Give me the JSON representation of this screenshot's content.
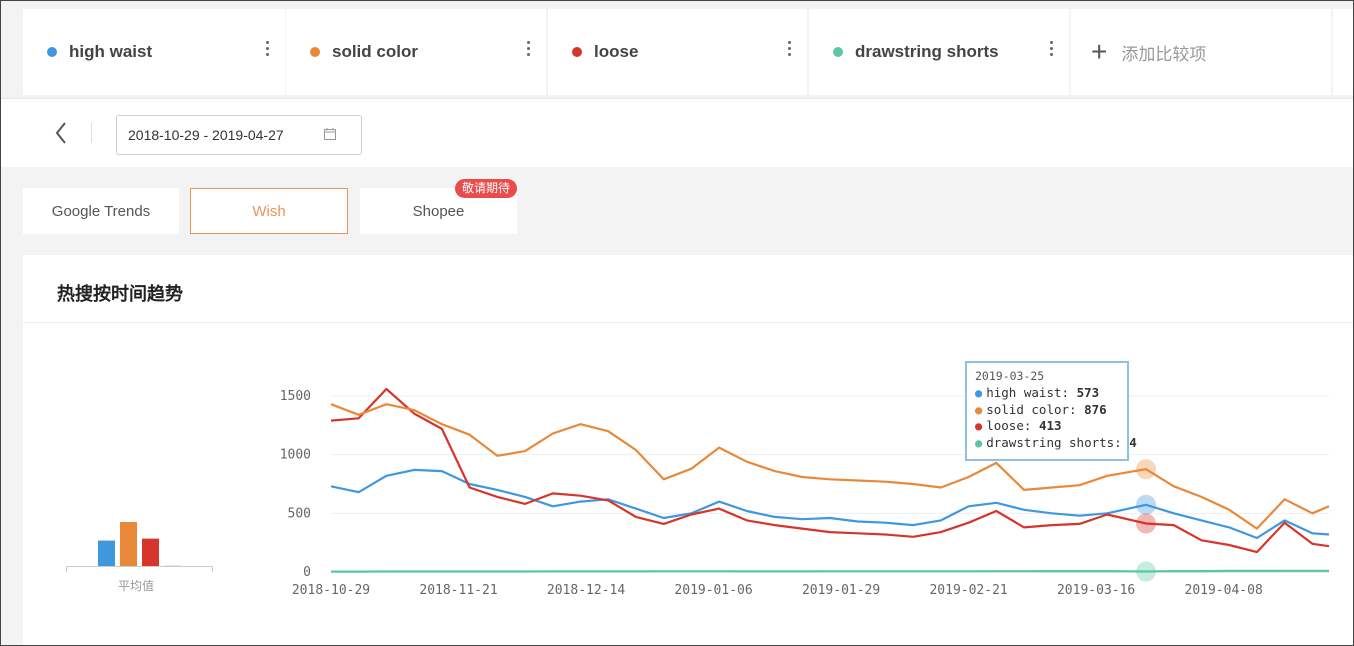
{
  "keywords": [
    {
      "label": "high waist",
      "color": "#3f97dd"
    },
    {
      "label": "solid color",
      "color": "#e8893a"
    },
    {
      "label": "loose",
      "color": "#d6352c"
    },
    {
      "label": "drawstring shorts",
      "color": "#5bc6a3"
    }
  ],
  "add_compare": {
    "plus_icon": "plus-icon",
    "label": "添加比较项"
  },
  "date_range": {
    "value": "2018-10-29 - 2019-04-27",
    "back_icon": "chevron-left-icon",
    "calendar_icon": "calendar-icon"
  },
  "tabs": [
    {
      "label": "Google Trends"
    },
    {
      "label": "Wish",
      "active": true
    },
    {
      "label": "Shopee",
      "badge": "敬请期待"
    }
  ],
  "card": {
    "title": "热搜按时间趋势",
    "avg_label": "平均值"
  },
  "average_bars": [
    {
      "keyword": "high waist",
      "color": "#3f97dd",
      "value": 520
    },
    {
      "keyword": "solid color",
      "color": "#e8893a",
      "value": 900
    },
    {
      "keyword": "loose",
      "color": "#d6352c",
      "value": 560
    },
    {
      "keyword": "drawstring shorts",
      "color": "#5bc6a3",
      "value": 5
    }
  ],
  "tooltip": {
    "date": "2019-03-25",
    "rows": [
      {
        "name": "high waist",
        "value": "573",
        "color": "#3f97dd"
      },
      {
        "name": "solid color",
        "value": "876",
        "color": "#e8893a"
      },
      {
        "name": "loose",
        "value": "413",
        "color": "#d6352c"
      },
      {
        "name": "drawstring shorts",
        "value": "4",
        "color": "#5bc6a3"
      }
    ]
  },
  "chart_data": {
    "type": "line",
    "xlabel": "",
    "ylabel": "",
    "ylim": [
      0,
      1500
    ],
    "yticks": [
      0,
      500,
      1000,
      1500
    ],
    "grid": true,
    "x_tick_labels": [
      "2018-10-29",
      "2018-11-21",
      "2018-12-14",
      "2019-01-06",
      "2019-01-29",
      "2019-02-21",
      "2019-03-16",
      "2019-04-08"
    ],
    "x": [
      "2018-10-29",
      "2018-11-03",
      "2018-11-08",
      "2018-11-13",
      "2018-11-18",
      "2018-11-23",
      "2018-11-28",
      "2018-12-03",
      "2018-12-08",
      "2018-12-13",
      "2018-12-18",
      "2018-12-23",
      "2018-12-28",
      "2019-01-02",
      "2019-01-07",
      "2019-01-12",
      "2019-01-17",
      "2019-01-22",
      "2019-01-27",
      "2019-02-01",
      "2019-02-06",
      "2019-02-11",
      "2019-02-16",
      "2019-02-21",
      "2019-02-26",
      "2019-03-03",
      "2019-03-08",
      "2019-03-13",
      "2019-03-18",
      "2019-03-25",
      "2019-03-30",
      "2019-04-04",
      "2019-04-09",
      "2019-04-14",
      "2019-04-19",
      "2019-04-24",
      "2019-04-27"
    ],
    "series": [
      {
        "name": "high waist",
        "color": "#3f97dd",
        "values": [
          730,
          680,
          820,
          870,
          860,
          750,
          700,
          640,
          560,
          600,
          620,
          540,
          460,
          500,
          600,
          520,
          470,
          450,
          460,
          430,
          420,
          400,
          440,
          560,
          590,
          530,
          500,
          480,
          500,
          573,
          500,
          440,
          380,
          290,
          440,
          330,
          320
        ]
      },
      {
        "name": "solid color",
        "color": "#e8893a",
        "values": [
          1430,
          1340,
          1430,
          1380,
          1260,
          1170,
          990,
          1030,
          1180,
          1260,
          1200,
          1040,
          790,
          880,
          1060,
          940,
          860,
          810,
          790,
          780,
          770,
          750,
          720,
          810,
          930,
          700,
          720,
          740,
          820,
          876,
          730,
          640,
          530,
          370,
          620,
          500,
          560
        ]
      },
      {
        "name": "loose",
        "color": "#d6352c",
        "values": [
          1290,
          1310,
          1560,
          1350,
          1220,
          720,
          640,
          580,
          670,
          650,
          610,
          470,
          410,
          490,
          540,
          440,
          400,
          370,
          340,
          330,
          320,
          300,
          340,
          420,
          520,
          380,
          400,
          410,
          490,
          413,
          400,
          270,
          230,
          170,
          420,
          240,
          220
        ]
      },
      {
        "name": "drawstring shorts",
        "color": "#5bc6a3",
        "values": [
          3,
          3,
          4,
          4,
          4,
          4,
          4,
          4,
          5,
          5,
          5,
          5,
          6,
          6,
          6,
          5,
          5,
          5,
          6,
          6,
          6,
          6,
          6,
          6,
          7,
          7,
          8,
          8,
          8,
          4,
          8,
          8,
          9,
          9,
          10,
          10,
          10
        ]
      }
    ]
  }
}
